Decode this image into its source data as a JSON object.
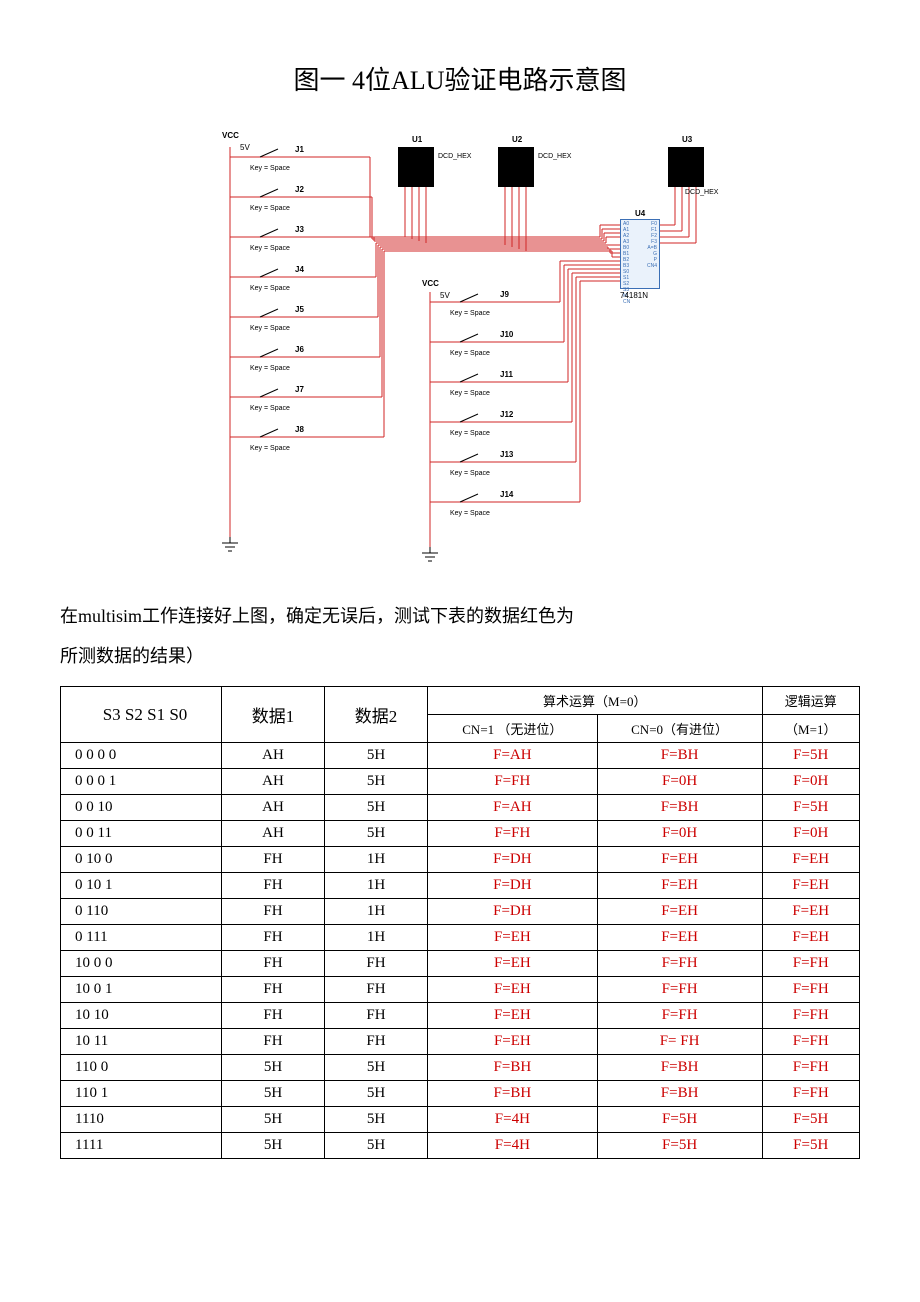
{
  "title": "图一  4位ALU验证电路示意图",
  "paragraph_line1": "在multisim工作连接好上图，确定无误后，测试下表的数据红色为",
  "paragraph_line2": "所测数据的结果）",
  "diagram": {
    "vcc_label": "VCC",
    "vcc_voltage": "5V",
    "key_label": "Key = Space",
    "left_switches": [
      "J1",
      "J2",
      "J3",
      "J4",
      "J5",
      "J6",
      "J7",
      "J8"
    ],
    "right_switches": [
      "J9",
      "J10",
      "J11",
      "J12",
      "J13",
      "J14"
    ],
    "displays": [
      {
        "id": "U1",
        "type": "DCD_HEX"
      },
      {
        "id": "U2",
        "type": "DCD_HEX"
      },
      {
        "id": "U3",
        "type": "DCD_HEX"
      }
    ],
    "alu": {
      "id": "U4",
      "part": "74181N"
    },
    "wire_color": "#d02525",
    "ground_symbol": "⏚"
  },
  "table": {
    "headers": {
      "s": "S3  S2  S1  S0",
      "d1": "数据1",
      "d2": "数据2",
      "arith": "算术运算（M=0）",
      "cn1": "CN=1 （无进位）",
      "cn0": "CN=0（有进位）",
      "logic": "逻辑运算（M=1）"
    },
    "rows": [
      {
        "s": "0 0 0 0",
        "d1": "AH",
        "d2": "5H",
        "cn1": "F=AH",
        "cn0": "F=BH",
        "logic": "F=5H"
      },
      {
        "s": "0 0 0 1",
        "d1": "AH",
        "d2": "5H",
        "cn1": "F=FH",
        "cn0": "F=0H",
        "logic": "F=0H"
      },
      {
        "s": "0 0 10",
        "d1": "AH",
        "d2": "5H",
        "cn1": "F=AH",
        "cn0": "F=BH",
        "logic": "F=5H"
      },
      {
        "s": "0 0 11",
        "d1": "AH",
        "d2": "5H",
        "cn1": "F=FH",
        "cn0": "F=0H",
        "logic": "F=0H"
      },
      {
        "s": "0 10 0",
        "d1": "FH",
        "d2": "1H",
        "cn1": "F=DH",
        "cn0": "F=EH",
        "logic": "F=EH"
      },
      {
        "s": "0 10 1",
        "d1": "FH",
        "d2": "1H",
        "cn1": "F=DH",
        "cn0": "F=EH",
        "logic": "F=EH"
      },
      {
        "s": "0 110",
        "d1": "FH",
        "d2": "1H",
        "cn1": "F=DH",
        "cn0": "F=EH",
        "logic": "F=EH"
      },
      {
        "s": "0 111",
        "d1": "FH",
        "d2": "1H",
        "cn1": "F=EH",
        "cn0": "F=EH",
        "logic": "F=EH"
      },
      {
        "s": "10 0 0",
        "d1": "FH",
        "d2": "FH",
        "cn1": "F=EH",
        "cn0": "F=FH",
        "logic": "F=FH"
      },
      {
        "s": "10 0 1",
        "d1": "FH",
        "d2": "FH",
        "cn1": "F=EH",
        "cn0": "F=FH",
        "logic": "F=FH"
      },
      {
        "s": "10 10",
        "d1": "FH",
        "d2": "FH",
        "cn1": "F=EH",
        "cn0": "F=FH",
        "logic": "F=FH"
      },
      {
        "s": "10 11",
        "d1": "FH",
        "d2": "FH",
        "cn1": "F=EH",
        "cn0": "F= FH",
        "logic": "F=FH"
      },
      {
        "s": "110 0",
        "d1": "5H",
        "d2": "5H",
        "cn1": "F=BH",
        "cn0": "F=BH",
        "logic": "F=FH"
      },
      {
        "s": "110 1",
        "d1": "5H",
        "d2": "5H",
        "cn1": "F=BH",
        "cn0": "F=BH",
        "logic": "F=FH"
      },
      {
        "s": "1110",
        "d1": "5H",
        "d2": "5H",
        "cn1": "F=4H",
        "cn0": "F=5H",
        "logic": "F=5H"
      },
      {
        "s": "1111",
        "d1": "5H",
        "d2": "5H",
        "cn1": "F=4H",
        "cn0": "F=5H",
        "logic": "F=5H"
      }
    ],
    "result_color": "#cc0000",
    "border_color": "#000000"
  }
}
